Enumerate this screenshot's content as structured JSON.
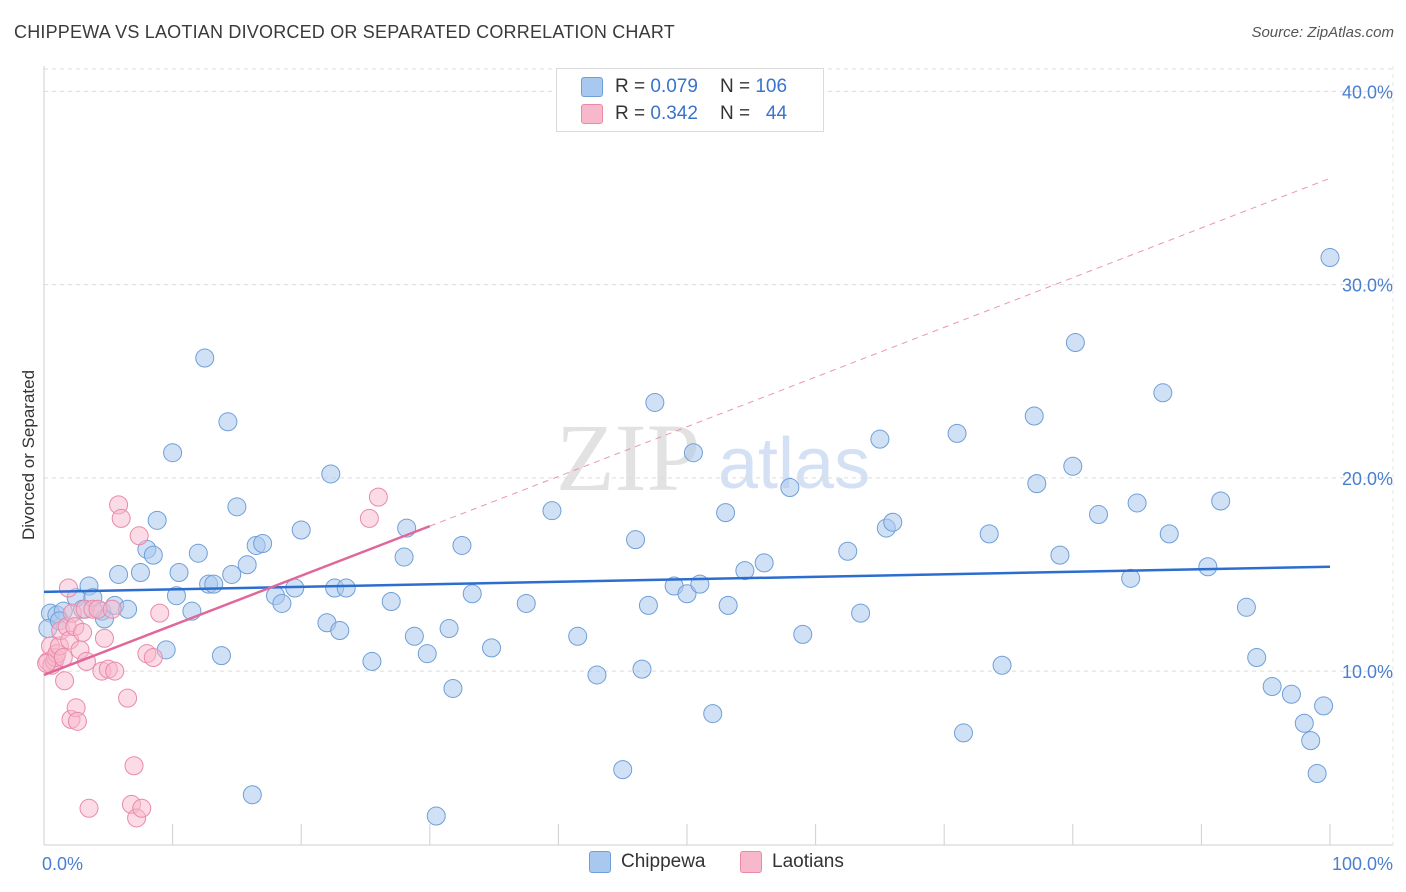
{
  "title": "CHIPPEWA VS LAOTIAN DIVORCED OR SEPARATED CORRELATION CHART",
  "source": "Source: ZipAtlas.com",
  "watermark": {
    "zip": "ZIP",
    "atlas": "atlas"
  },
  "legend": {
    "rows": [
      {
        "r_label": "R =",
        "r_value": "0.079",
        "n_label": "N =",
        "n_value": "106"
      },
      {
        "r_label": "R =",
        "r_value": "0.342",
        "n_label": "N =",
        "n_value": "44"
      }
    ]
  },
  "bottom_legend": [
    "Chippewa",
    "Laotians"
  ],
  "colors": {
    "chippewa_fill": "#a9c8ef",
    "chippewa_stroke": "#6f9fd8",
    "chippewa_line": "#2c6ecf",
    "laotians_fill": "#f7b8cb",
    "laotians_stroke": "#e98aa9",
    "laotians_line": "#e0679a"
  },
  "chart_data": {
    "type": "scatter",
    "title": "CHIPPEWA VS LAOTIAN DIVORCED OR SEPARATED CORRELATION CHART",
    "xlabel": "",
    "ylabel": "Divorced or Separated",
    "xlim": [
      0,
      100
    ],
    "ylim": [
      1,
      41
    ],
    "x_tick_labels": [
      "0.0%",
      "100.0%"
    ],
    "y_ticks": [
      10,
      20,
      30,
      40
    ],
    "y_tick_labels": [
      "10.0%",
      "20.0%",
      "30.0%",
      "40.0%"
    ],
    "series": [
      {
        "name": "Chippewa",
        "R": 0.079,
        "N": 106,
        "trend": {
          "x": [
            0,
            100
          ],
          "y": [
            14.1,
            15.4
          ]
        },
        "points": [
          [
            0.5,
            13.0
          ],
          [
            1.0,
            12.9
          ],
          [
            1.5,
            13.1
          ],
          [
            2.5,
            13.8
          ],
          [
            3.0,
            13.2
          ],
          [
            3.5,
            14.4
          ],
          [
            3.8,
            13.8
          ],
          [
            4.5,
            13.1
          ],
          [
            4.7,
            12.7
          ],
          [
            5.5,
            13.4
          ],
          [
            5.8,
            15.0
          ],
          [
            6.5,
            13.2
          ],
          [
            7.5,
            15.1
          ],
          [
            8.0,
            16.3
          ],
          [
            8.5,
            16.0
          ],
          [
            8.8,
            17.8
          ],
          [
            9.5,
            11.1
          ],
          [
            10.0,
            21.3
          ],
          [
            10.3,
            13.9
          ],
          [
            10.5,
            15.1
          ],
          [
            11.5,
            13.1
          ],
          [
            12.0,
            16.1
          ],
          [
            12.5,
            26.2
          ],
          [
            12.8,
            14.5
          ],
          [
            13.2,
            14.5
          ],
          [
            13.8,
            10.8
          ],
          [
            14.3,
            22.9
          ],
          [
            14.6,
            15.0
          ],
          [
            15.0,
            18.5
          ],
          [
            15.8,
            15.5
          ],
          [
            16.2,
            3.6
          ],
          [
            16.5,
            16.5
          ],
          [
            17.0,
            16.6
          ],
          [
            18.0,
            13.9
          ],
          [
            18.5,
            13.5
          ],
          [
            19.5,
            14.3
          ],
          [
            20.0,
            17.3
          ],
          [
            22.0,
            12.5
          ],
          [
            22.3,
            20.2
          ],
          [
            22.6,
            14.3
          ],
          [
            23.0,
            12.1
          ],
          [
            23.5,
            14.3
          ],
          [
            25.5,
            10.5
          ],
          [
            27.0,
            13.6
          ],
          [
            28.0,
            15.9
          ],
          [
            28.2,
            17.4
          ],
          [
            28.8,
            11.8
          ],
          [
            29.8,
            10.9
          ],
          [
            30.5,
            2.5
          ],
          [
            31.5,
            12.2
          ],
          [
            31.8,
            9.1
          ],
          [
            32.5,
            16.5
          ],
          [
            33.3,
            14.0
          ],
          [
            34.8,
            11.2
          ],
          [
            37.5,
            13.5
          ],
          [
            39.5,
            18.3
          ],
          [
            41.5,
            11.8
          ],
          [
            43.0,
            9.8
          ],
          [
            45.0,
            4.9
          ],
          [
            46.0,
            16.8
          ],
          [
            46.5,
            10.1
          ],
          [
            47.0,
            13.4
          ],
          [
            47.5,
            23.9
          ],
          [
            49.0,
            14.4
          ],
          [
            50.0,
            14.0
          ],
          [
            50.5,
            21.3
          ],
          [
            51.0,
            14.5
          ],
          [
            52.0,
            7.8
          ],
          [
            53.0,
            18.2
          ],
          [
            53.2,
            13.4
          ],
          [
            54.5,
            15.2
          ],
          [
            56.0,
            15.6
          ],
          [
            58.0,
            19.5
          ],
          [
            59.0,
            11.9
          ],
          [
            62.5,
            16.2
          ],
          [
            63.5,
            13.0
          ],
          [
            65.0,
            22.0
          ],
          [
            65.5,
            17.4
          ],
          [
            66.0,
            17.7
          ],
          [
            71.0,
            22.3
          ],
          [
            71.5,
            6.8
          ],
          [
            73.5,
            17.1
          ],
          [
            74.5,
            10.3
          ],
          [
            77.0,
            23.2
          ],
          [
            77.2,
            19.7
          ],
          [
            79.0,
            16.0
          ],
          [
            80.0,
            20.6
          ],
          [
            80.2,
            27.0
          ],
          [
            82.0,
            18.1
          ],
          [
            84.5,
            14.8
          ],
          [
            85.0,
            18.7
          ],
          [
            87.0,
            24.4
          ],
          [
            87.5,
            17.1
          ],
          [
            90.5,
            15.4
          ],
          [
            91.5,
            18.8
          ],
          [
            93.5,
            13.3
          ],
          [
            94.3,
            10.7
          ],
          [
            95.5,
            9.2
          ],
          [
            97.0,
            8.8
          ],
          [
            98.0,
            7.3
          ],
          [
            98.5,
            6.4
          ],
          [
            99.0,
            4.7
          ],
          [
            99.5,
            8.2
          ],
          [
            100.0,
            31.4
          ],
          [
            0.3,
            12.2
          ],
          [
            1.2,
            12.6
          ]
        ]
      },
      {
        "name": "Laotians",
        "R": 0.342,
        "N": 44,
        "trend": {
          "x": [
            0,
            30
          ],
          "y": [
            9.8,
            17.5
          ],
          "extension": {
            "x": [
              30,
              100
            ],
            "y": [
              17.5,
              35.5
            ]
          }
        },
        "points": [
          [
            0.3,
            10.5
          ],
          [
            0.5,
            11.3
          ],
          [
            0.6,
            10.3
          ],
          [
            0.8,
            10.5
          ],
          [
            0.9,
            10.7
          ],
          [
            1.0,
            10.9
          ],
          [
            1.2,
            11.3
          ],
          [
            1.3,
            12.1
          ],
          [
            1.5,
            10.7
          ],
          [
            1.6,
            9.5
          ],
          [
            1.8,
            12.3
          ],
          [
            1.9,
            14.3
          ],
          [
            2.0,
            11.6
          ],
          [
            2.1,
            7.5
          ],
          [
            2.2,
            13.0
          ],
          [
            2.4,
            12.3
          ],
          [
            2.5,
            8.1
          ],
          [
            2.6,
            7.4
          ],
          [
            2.8,
            11.1
          ],
          [
            3.0,
            12.0
          ],
          [
            3.2,
            13.2
          ],
          [
            3.3,
            10.5
          ],
          [
            3.5,
            2.9
          ],
          [
            3.8,
            13.2
          ],
          [
            4.2,
            13.2
          ],
          [
            4.5,
            10.0
          ],
          [
            4.7,
            11.7
          ],
          [
            5.0,
            10.1
          ],
          [
            5.3,
            13.2
          ],
          [
            5.5,
            10.0
          ],
          [
            5.8,
            18.6
          ],
          [
            6.0,
            17.9
          ],
          [
            6.5,
            8.6
          ],
          [
            6.8,
            3.1
          ],
          [
            7.0,
            5.1
          ],
          [
            7.2,
            2.4
          ],
          [
            7.4,
            17.0
          ],
          [
            7.6,
            2.9
          ],
          [
            8.0,
            10.9
          ],
          [
            8.5,
            10.7
          ],
          [
            9.0,
            13.0
          ],
          [
            25.3,
            17.9
          ],
          [
            26.0,
            19.0
          ],
          [
            0.2,
            10.4
          ]
        ]
      }
    ]
  }
}
